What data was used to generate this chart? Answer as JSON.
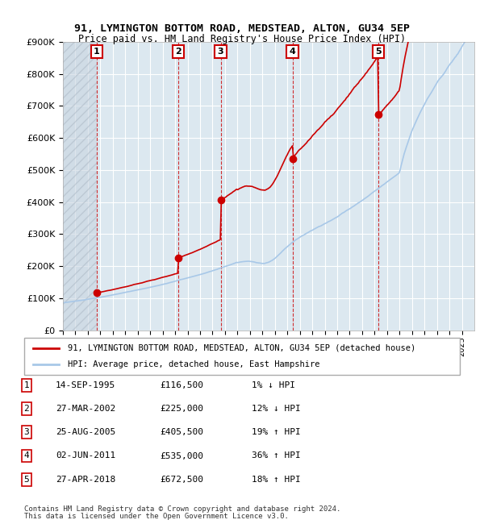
{
  "title": "91, LYMINGTON BOTTOM ROAD, MEDSTEAD, ALTON, GU34 5EP",
  "subtitle": "Price paid vs. HM Land Registry's House Price Index (HPI)",
  "transactions": [
    {
      "num": 1,
      "date": "14-SEP-1995",
      "price": 116500,
      "year": 1995.71,
      "pct": "1%",
      "dir": "↓"
    },
    {
      "num": 2,
      "date": "27-MAR-2002",
      "price": 225000,
      "year": 2002.24,
      "pct": "12%",
      "dir": "↓"
    },
    {
      "num": 3,
      "date": "25-AUG-2005",
      "price": 405500,
      "year": 2005.65,
      "pct": "19%",
      "dir": "↑"
    },
    {
      "num": 4,
      "date": "02-JUN-2011",
      "price": 535000,
      "year": 2011.42,
      "pct": "36%",
      "dir": "↑"
    },
    {
      "num": 5,
      "date": "27-APR-2018",
      "price": 672500,
      "year": 2018.32,
      "pct": "18%",
      "dir": "↑"
    }
  ],
  "hpi_color": "#a8c8e8",
  "price_color": "#cc0000",
  "marker_color": "#cc0000",
  "dashed_color": "#cc0000",
  "hatch_color": "#d0d8e8",
  "bg_color": "#dce8f0",
  "grid_color": "#ffffff",
  "legend1": "91, LYMINGTON BOTTOM ROAD, MEDSTEAD, ALTON, GU34 5EP (detached house)",
  "legend2": "HPI: Average price, detached house, East Hampshire",
  "footer1": "Contains HM Land Registry data © Crown copyright and database right 2024.",
  "footer2": "This data is licensed under the Open Government Licence v3.0.",
  "ylim": [
    0,
    900000
  ],
  "xlim_start": 1993,
  "xlim_end": 2026
}
